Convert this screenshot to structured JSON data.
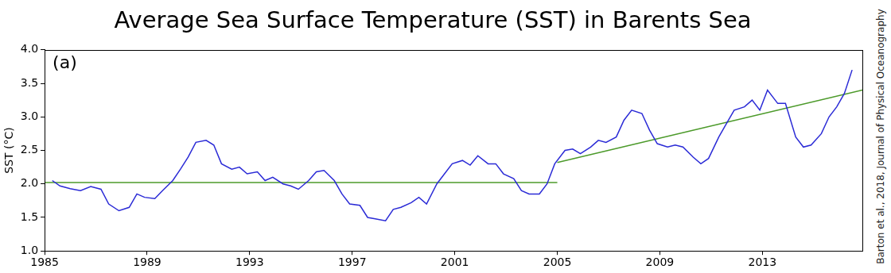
{
  "chart_data": {
    "type": "line",
    "title": "Average Sea Surface Temperature (SST) in Barents Sea",
    "y_label": "SST (°C)",
    "annotations": [
      "(a)"
    ],
    "source": "Barton et al., 2018, Journal of Physical Oceanography",
    "xlim": [
      1985,
      2016.9
    ],
    "xticks": [
      1985,
      1989,
      1993,
      1997,
      2001,
      2005,
      2009,
      2013
    ],
    "ylim": [
      1.0,
      4.0
    ],
    "yticks": [
      {
        "value": 1.0,
        "label": "1.0"
      },
      1.5,
      {
        "value": 2.0,
        "label": "2.0"
      },
      2.5,
      {
        "value": 3.0,
        "label": "3.0"
      },
      3.5,
      {
        "value": 4.0,
        "label": "4.0"
      }
    ],
    "grid": false,
    "series": [
      {
        "color": "#2b2bd6",
        "x": [
          1985.3,
          1985.6,
          1986.0,
          1986.4,
          1986.8,
          1987.2,
          1987.5,
          1987.9,
          1988.3,
          1988.6,
          1988.9,
          1989.3,
          1989.6,
          1990.0,
          1990.3,
          1990.6,
          1990.9,
          1991.3,
          1991.6,
          1991.9,
          1992.3,
          1992.6,
          1992.9,
          1993.3,
          1993.6,
          1993.9,
          1994.3,
          1994.6,
          1994.9,
          1995.3,
          1995.6,
          1995.9,
          1996.3,
          1996.6,
          1996.9,
          1997.3,
          1997.6,
          1997.9,
          1998.3,
          1998.6,
          1998.9,
          1999.3,
          1999.6,
          1999.9,
          2000.3,
          2000.6,
          2000.9,
          2001.3,
          2001.6,
          2001.9,
          2002.3,
          2002.6,
          2002.9,
          2003.3,
          2003.6,
          2003.9,
          2004.3,
          2004.6,
          2004.9,
          2005.3,
          2005.6,
          2005.9,
          2006.3,
          2006.6,
          2006.9,
          2007.3,
          2007.6,
          2007.9,
          2008.3,
          2008.6,
          2008.9,
          2009.3,
          2009.6,
          2009.9,
          2010.3,
          2010.6,
          2010.9,
          2011.3,
          2011.6,
          2011.9,
          2012.3,
          2012.6,
          2012.9,
          2013.2,
          2013.6,
          2013.9,
          2014.3,
          2014.6,
          2014.9,
          2015.3,
          2015.6,
          2015.9,
          2016.2,
          2016.5
        ],
        "values": [
          2.05,
          1.97,
          1.93,
          1.9,
          1.96,
          1.92,
          1.7,
          1.6,
          1.65,
          1.85,
          1.8,
          1.78,
          1.9,
          2.05,
          2.22,
          2.4,
          2.62,
          2.65,
          2.58,
          2.3,
          2.22,
          2.25,
          2.15,
          2.18,
          2.05,
          2.1,
          2.0,
          1.97,
          1.92,
          2.05,
          2.18,
          2.2,
          2.05,
          1.85,
          1.7,
          1.68,
          1.5,
          1.48,
          1.45,
          1.62,
          1.65,
          1.72,
          1.8,
          1.7,
          2.0,
          2.15,
          2.3,
          2.35,
          2.28,
          2.42,
          2.3,
          2.3,
          2.15,
          2.08,
          1.9,
          1.85,
          1.85,
          2.0,
          2.3,
          2.5,
          2.52,
          2.45,
          2.55,
          2.65,
          2.62,
          2.7,
          2.95,
          3.1,
          3.05,
          2.8,
          2.6,
          2.55,
          2.58,
          2.55,
          2.4,
          2.3,
          2.38,
          2.7,
          2.9,
          3.1,
          3.15,
          3.25,
          3.1,
          3.4,
          3.2,
          3.2,
          2.7,
          2.55,
          2.58,
          2.75,
          3.0,
          3.15,
          3.35,
          3.7
        ]
      },
      {
        "color": "#4c9a2a",
        "x": [
          1985,
          2005
        ],
        "values": [
          2.02,
          2.02
        ]
      },
      {
        "color": "#4c9a2a",
        "x": [
          2005,
          2016.9
        ],
        "values": [
          2.32,
          3.4
        ]
      }
    ]
  }
}
